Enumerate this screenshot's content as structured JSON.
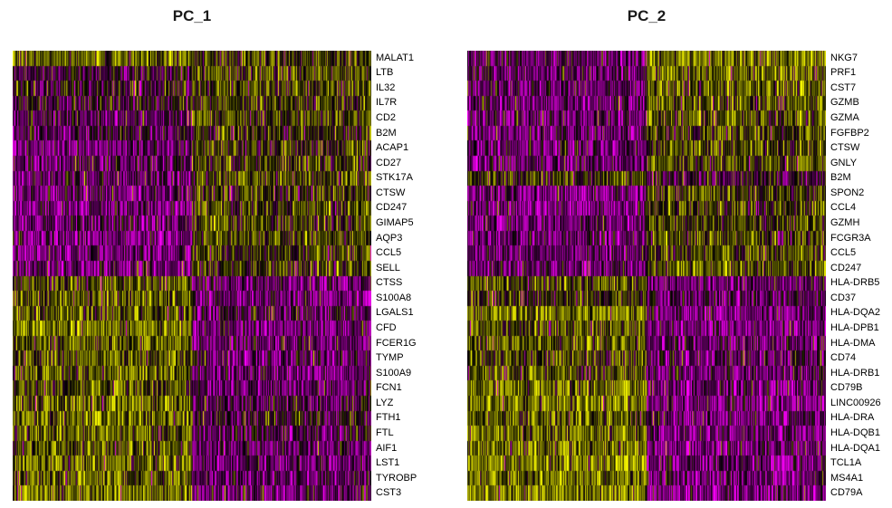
{
  "chart_data": [
    {
      "type": "heatmap",
      "title": "PC_1",
      "genes": [
        "MALAT1",
        "LTB",
        "IL32",
        "IL7R",
        "CD2",
        "B2M",
        "ACAP1",
        "CD27",
        "STK17A",
        "CTSW",
        "CD247",
        "GIMAP5",
        "AQP3",
        "CCL5",
        "SELL",
        "CTSS",
        "S100A8",
        "LGALS1",
        "CFD",
        "FCER1G",
        "TYMP",
        "S100A9",
        "FCN1",
        "LYZ",
        "FTH1",
        "FTL",
        "AIF1",
        "LST1",
        "TYROBP",
        "CST3"
      ],
      "cell_groups": [
        "left",
        "right"
      ],
      "mean_expression": {
        "left": [
          1.6,
          0.7,
          0.9,
          0.8,
          0.5,
          0.6,
          0.2,
          0.3,
          0.3,
          0.2,
          0.2,
          0.3,
          0.1,
          0.1,
          0.2,
          1.4,
          1.6,
          1.5,
          1.9,
          1.7,
          1.5,
          1.6,
          1.5,
          1.8,
          1.7,
          1.6,
          1.5,
          1.7,
          1.6,
          1.8
        ],
        "right": [
          1.3,
          1.5,
          1.4,
          1.4,
          1.5,
          1.2,
          1.3,
          1.4,
          1.4,
          1.3,
          1.4,
          1.4,
          1.5,
          1.3,
          1.4,
          0.3,
          0.2,
          0.6,
          0.2,
          0.3,
          0.4,
          0.2,
          0.3,
          0.5,
          0.8,
          0.6,
          0.4,
          0.3,
          0.4,
          0.3
        ]
      },
      "color_scale": [
        "#ff00ff",
        "#000000",
        "#ffff00"
      ]
    },
    {
      "type": "heatmap",
      "title": "PC_2",
      "genes": [
        "NKG7",
        "PRF1",
        "CST7",
        "GZMB",
        "GZMA",
        "FGFBP2",
        "CTSW",
        "GNLY",
        "B2M",
        "SPON2",
        "CCL4",
        "GZMH",
        "FCGR3A",
        "CCL5",
        "CD247",
        "HLA-DRB5",
        "CD37",
        "HLA-DQA2",
        "HLA-DPB1",
        "HLA-DMA",
        "CD74",
        "HLA-DRB1",
        "CD79B",
        "LINC00926",
        "HLA-DRA",
        "HLA-DQB1",
        "HLA-DQA1",
        "TCL1A",
        "MS4A1",
        "CD79A"
      ],
      "cell_groups": [
        "left",
        "right"
      ],
      "mean_expression": {
        "left": [
          0.3,
          0.3,
          0.3,
          0.2,
          0.3,
          0.2,
          0.3,
          0.3,
          1.3,
          0.1,
          0.2,
          0.2,
          0.3,
          0.3,
          0.2,
          1.5,
          1.2,
          1.9,
          1.5,
          1.6,
          1.4,
          1.5,
          1.8,
          1.9,
          1.6,
          1.8,
          1.8,
          1.9,
          1.9,
          1.9
        ],
        "right": [
          1.9,
          1.8,
          1.7,
          1.6,
          1.6,
          1.5,
          1.5,
          1.5,
          0.8,
          1.4,
          1.4,
          1.4,
          1.5,
          1.5,
          1.6,
          0.3,
          0.4,
          0.2,
          0.2,
          0.3,
          0.4,
          0.3,
          0.2,
          0.1,
          0.3,
          0.2,
          0.2,
          0.2,
          0.2,
          0.2
        ]
      },
      "color_scale": [
        "#ff00ff",
        "#000000",
        "#ffff00"
      ]
    }
  ]
}
